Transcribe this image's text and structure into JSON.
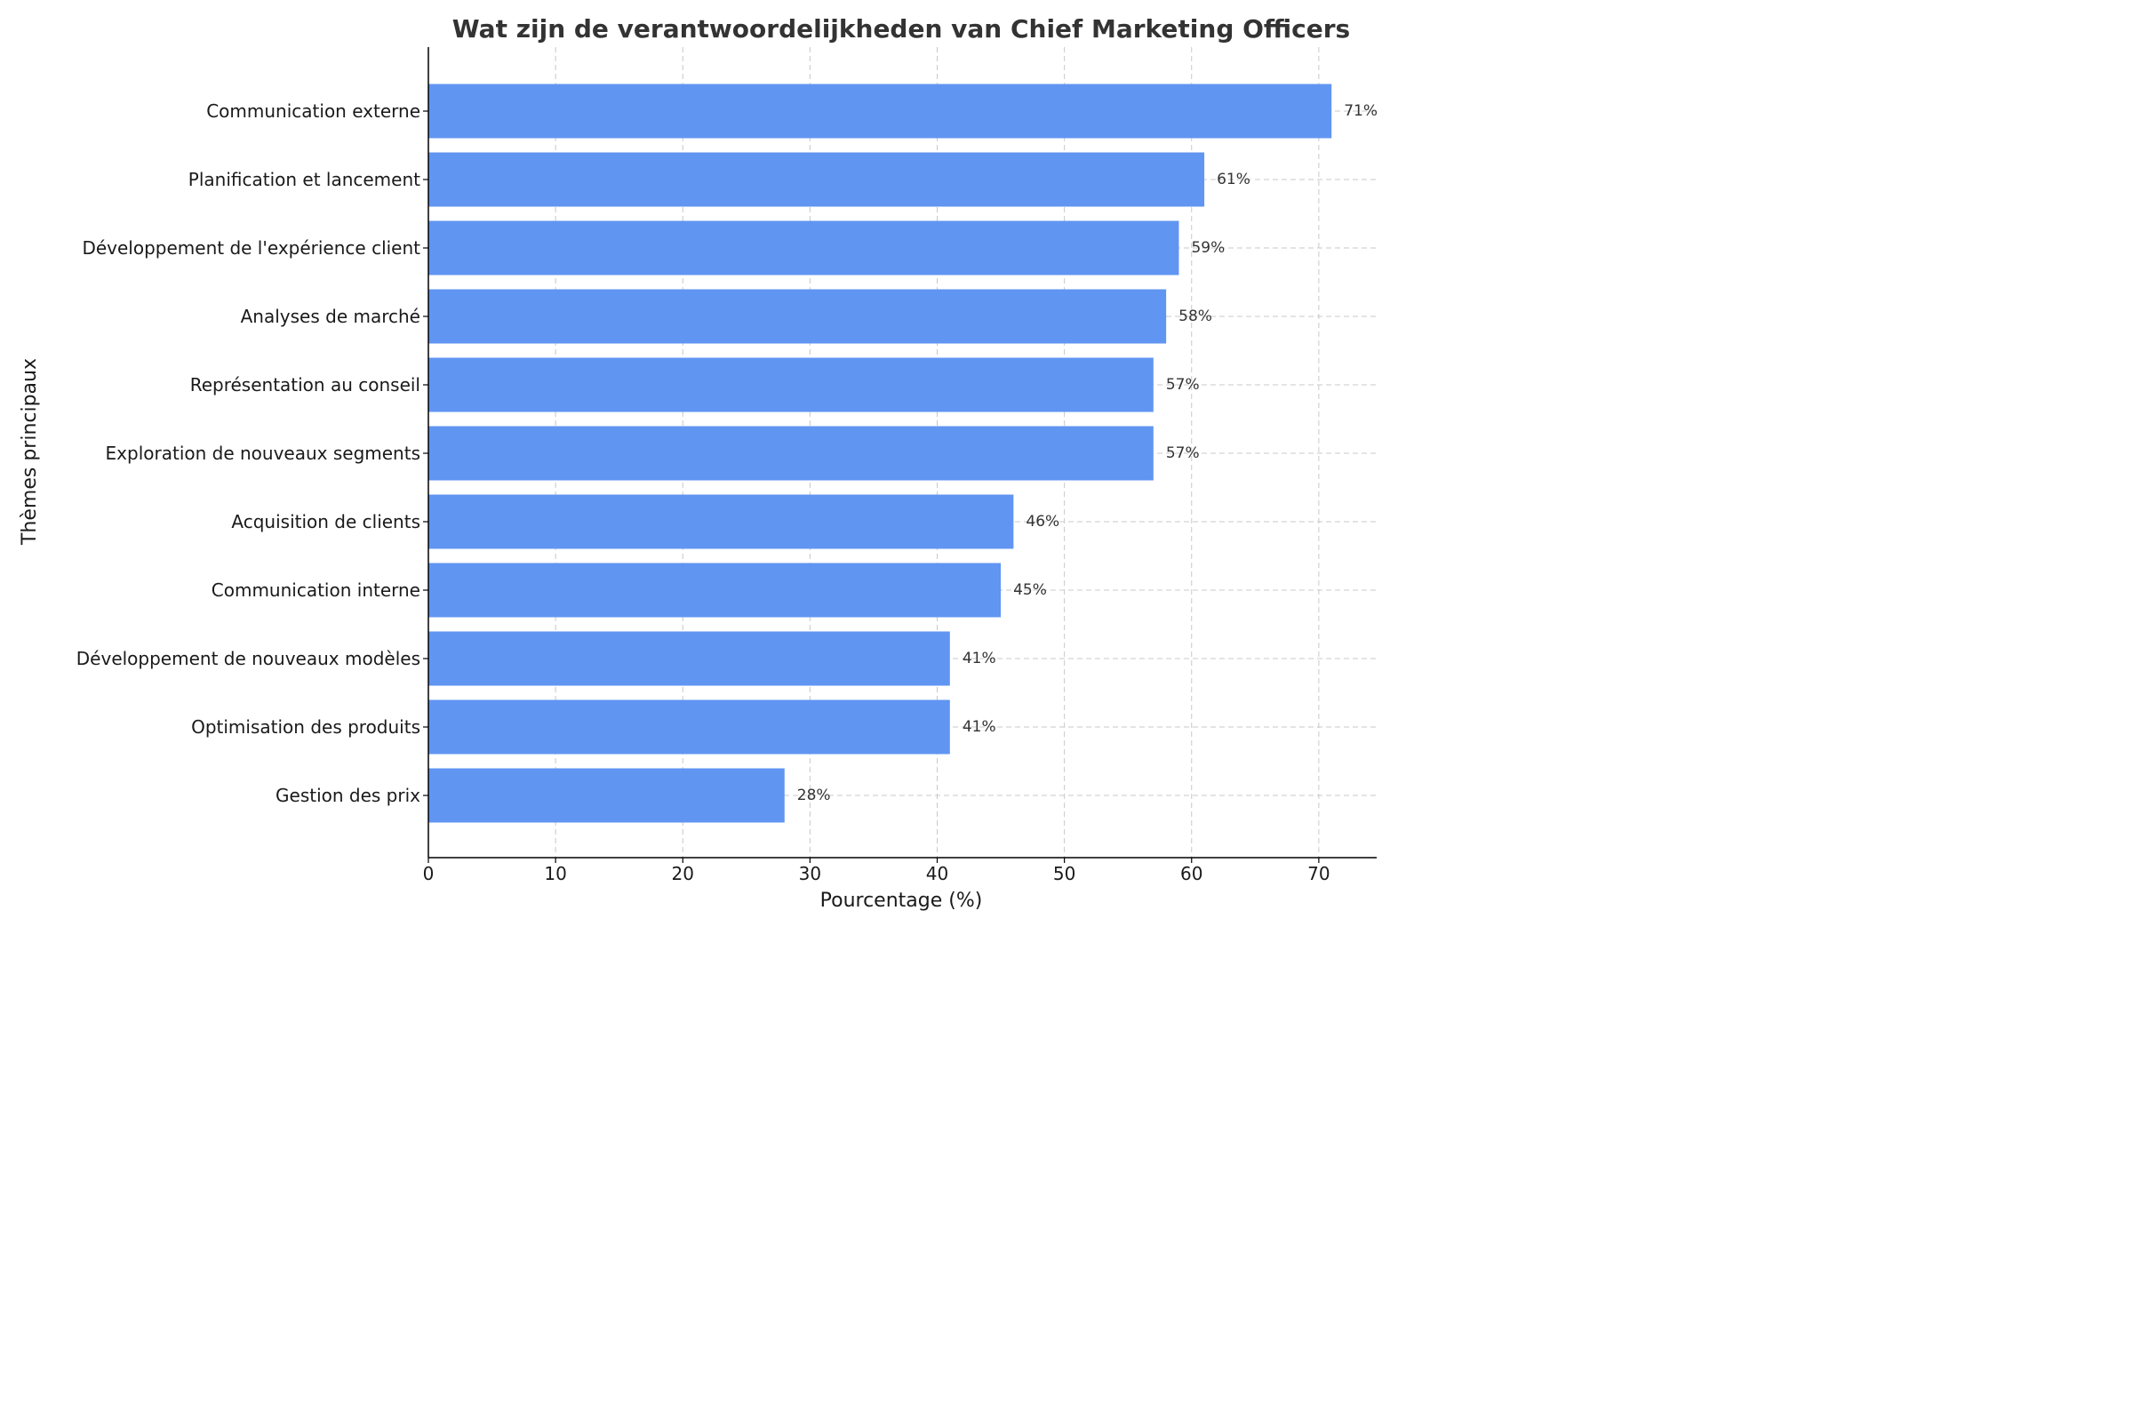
{
  "chart_data": {
    "type": "bar",
    "orientation": "horizontal",
    "title": "Wat zijn de verantwoordelijkheden van Chief Marketing Officers",
    "xlabel": "Pourcentage (%)",
    "ylabel": "Thèmes principaux",
    "categories": [
      "Communication externe",
      "Planification et lancement",
      "Développement de l'expérience client",
      "Analyses de marché",
      "Représentation au conseil",
      "Exploration de nouveaux segments",
      "Acquisition de clients",
      "Communication interne",
      "Développement de nouveaux modèles",
      "Optimisation des produits",
      "Gestion des prix"
    ],
    "values": [
      71,
      61,
      59,
      58,
      57,
      57,
      46,
      45,
      41,
      41,
      28
    ],
    "value_labels": [
      "71%",
      "61%",
      "59%",
      "58%",
      "57%",
      "57%",
      "46%",
      "45%",
      "41%",
      "41%",
      "28%"
    ],
    "xlim": [
      0,
      74.55
    ],
    "xticks": [
      0,
      10,
      20,
      30,
      40,
      50,
      60,
      70
    ],
    "xtick_labels": [
      "0",
      "10",
      "20",
      "30",
      "40",
      "50",
      "60",
      "70"
    ],
    "grid": true,
    "bar_color": "#6095f2",
    "grid_color": "#c8c8c8"
  }
}
